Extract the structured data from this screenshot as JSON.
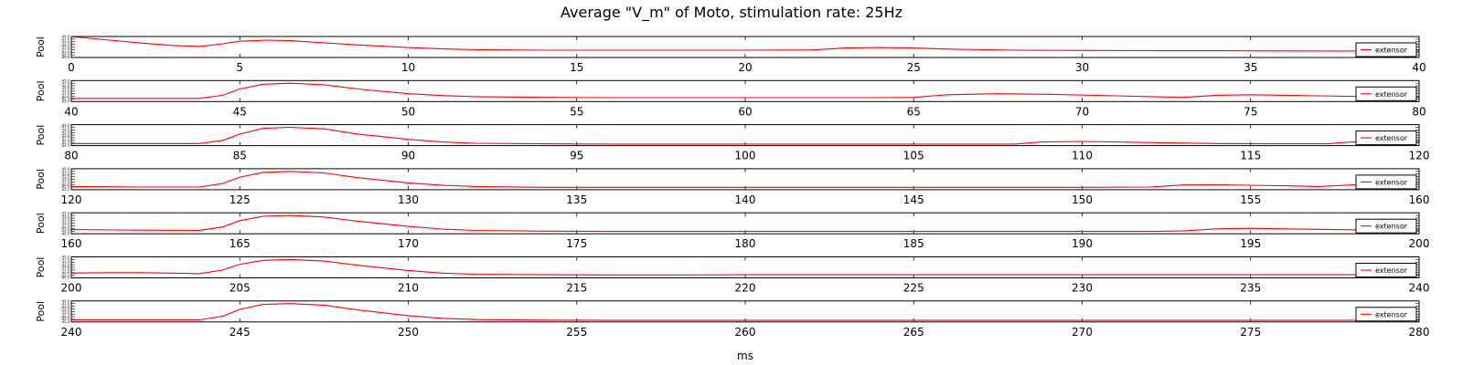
{
  "figure": {
    "title": "Average \"V_m\" of Moto, stimulation rate: 25Hz",
    "xlabel": "ms"
  },
  "chart_data": [
    {
      "type": "line",
      "ylabel": "Pool",
      "xlim": [
        0,
        40
      ],
      "ylim": [
        -65.0,
        -45.0
      ],
      "xticks": [
        "0",
        "5",
        "10",
        "15",
        "20",
        "25",
        "30",
        "35",
        "40"
      ],
      "yticks": [
        "-45.0",
        "-47.5",
        "-50.0",
        "-52.5",
        "-55.0",
        "-57.5",
        "-60.0",
        "-62.5",
        "-65.0"
      ],
      "series": [
        {
          "name": "extensor",
          "color": "#ff0000",
          "x": [
            0,
            1,
            2,
            3,
            3.8,
            4.5,
            5,
            5.8,
            6.5,
            7.5,
            8.5,
            10,
            11,
            12,
            14,
            16,
            18,
            20,
            22,
            23,
            24,
            25,
            26,
            28,
            30,
            32,
            34,
            36,
            38,
            40
          ],
          "y": [
            -45,
            -48,
            -51,
            -53.5,
            -54.5,
            -52,
            -49.5,
            -48.5,
            -49,
            -51,
            -53,
            -55.5,
            -56.8,
            -57.5,
            -58,
            -58,
            -58,
            -58,
            -57.8,
            -56,
            -55.5,
            -56,
            -57,
            -58,
            -58.3,
            -58.5,
            -58.6,
            -58.7,
            -58.8,
            -58.8
          ]
        }
      ],
      "legend": "right"
    },
    {
      "type": "line",
      "ylabel": "Pool",
      "xlim": [
        40,
        80
      ],
      "ylim": [
        -65.0,
        -45.0
      ],
      "xticks": [
        "40",
        "45",
        "50",
        "55",
        "60",
        "65",
        "70",
        "75",
        "80"
      ],
      "yticks": [
        "-45.0",
        "-47.5",
        "-50.0",
        "-52.5",
        "-55.0",
        "-57.5",
        "-60.0",
        "-62.5",
        "-65.0"
      ],
      "series": [
        {
          "name": "extensor",
          "color": "#ff0000",
          "x": [
            40,
            42,
            43.8,
            44.5,
            45,
            45.7,
            46.5,
            47.5,
            48.5,
            50,
            51,
            52,
            54,
            56,
            58,
            60,
            62,
            64,
            65,
            66,
            67.5,
            69,
            71,
            73,
            74,
            75,
            77,
            80
          ],
          "y": [
            -62,
            -62,
            -62,
            -59,
            -53,
            -48.5,
            -47.5,
            -49,
            -53,
            -57.5,
            -59.3,
            -60.3,
            -61,
            -61.3,
            -61.3,
            -61.3,
            -61.3,
            -61.3,
            -61,
            -58.5,
            -57.5,
            -58,
            -59.5,
            -61,
            -59,
            -58.5,
            -59.5,
            -61
          ]
        }
      ],
      "legend": "right"
    },
    {
      "type": "line",
      "ylabel": "Pool",
      "xlim": [
        80,
        120
      ],
      "ylim": [
        -65.0,
        -45.0
      ],
      "xticks": [
        "80",
        "85",
        "90",
        "95",
        "100",
        "105",
        "110",
        "115",
        "120"
      ],
      "yticks": [
        "-45.0",
        "-47.5",
        "-50.0",
        "-52.5",
        "-55.0",
        "-57.5",
        "-60.0",
        "-62.5",
        "-65.0"
      ],
      "series": [
        {
          "name": "extensor",
          "color": "#ff0000",
          "x": [
            80,
            82,
            83.8,
            84.5,
            85,
            85.7,
            86.5,
            87.5,
            88.5,
            90,
            91,
            92,
            94,
            96,
            98,
            100,
            102,
            104,
            106,
            108,
            108.8,
            110,
            112,
            114,
            116,
            117.3,
            118,
            120
          ],
          "y": [
            -63,
            -63,
            -63,
            -60,
            -54,
            -48.5,
            -47.5,
            -49,
            -54,
            -59,
            -61.5,
            -62.7,
            -63.3,
            -63.5,
            -63.5,
            -63.5,
            -63.5,
            -63.5,
            -63.5,
            -63.5,
            -61.5,
            -61,
            -62,
            -63,
            -63.3,
            -63.3,
            -61.5,
            -61
          ]
        }
      ],
      "legend": "right"
    },
    {
      "type": "line",
      "ylabel": "Pool",
      "xlim": [
        120,
        160
      ],
      "ylim": [
        -65.0,
        -45.0
      ],
      "xticks": [
        "120",
        "125",
        "130",
        "135",
        "140",
        "145",
        "150",
        "155",
        "160"
      ],
      "yticks": [
        "-45.0",
        "-47.5",
        "-50.0",
        "-52.5",
        "-55.0",
        "-57.5",
        "-60.0",
        "-62.5",
        "-65.0"
      ],
      "series": [
        {
          "name": "extensor",
          "color": "#ff0000",
          "x": [
            120,
            122,
            123.8,
            124.5,
            125,
            125.7,
            126.5,
            127.5,
            128.5,
            130,
            131,
            132,
            134,
            136,
            138,
            140,
            142,
            144,
            146,
            148,
            150,
            152,
            153,
            154,
            156,
            157,
            158,
            160
          ],
          "y": [
            -62,
            -62.5,
            -62.5,
            -59,
            -53,
            -48.5,
            -47.5,
            -49,
            -53.5,
            -58.5,
            -60.8,
            -62,
            -62.7,
            -62.7,
            -62.7,
            -62.7,
            -62.7,
            -62.7,
            -62.7,
            -62.7,
            -62.7,
            -62.5,
            -60.5,
            -60.3,
            -61.3,
            -62,
            -60.5,
            -60
          ]
        }
      ],
      "legend": "right"
    },
    {
      "type": "line",
      "ylabel": "Pool",
      "xlim": [
        160,
        200
      ],
      "ylim": [
        -65.0,
        -45.0
      ],
      "xticks": [
        "160",
        "165",
        "170",
        "175",
        "180",
        "185",
        "190",
        "195",
        "200"
      ],
      "yticks": [
        "-45.0",
        "-47.5",
        "-50.0",
        "-52.5",
        "-55.0",
        "-57.5",
        "-60.0",
        "-62.5",
        "-65.0"
      ],
      "series": [
        {
          "name": "extensor",
          "color": "#ff0000",
          "x": [
            160,
            162,
            163.8,
            164.5,
            165,
            165.7,
            166.5,
            167.5,
            168.5,
            170,
            171,
            172,
            174,
            176,
            178,
            180,
            182,
            184,
            186,
            188,
            190,
            192,
            193,
            194,
            195,
            196,
            198,
            200
          ],
          "y": [
            -61,
            -61.5,
            -61.7,
            -58.5,
            -52.5,
            -48.3,
            -47.5,
            -49,
            -53,
            -58,
            -60.5,
            -61.8,
            -62.5,
            -62.7,
            -62.7,
            -62.7,
            -62.7,
            -62.7,
            -62.7,
            -62.7,
            -62.7,
            -62.7,
            -62.3,
            -60.3,
            -59.8,
            -60.3,
            -61.2,
            -61.5
          ]
        }
      ],
      "legend": "right"
    },
    {
      "type": "line",
      "ylabel": "Pool",
      "xlim": [
        200,
        240
      ],
      "ylim": [
        -65.0,
        -45.0
      ],
      "xticks": [
        "200",
        "205",
        "210",
        "215",
        "220",
        "225",
        "230",
        "235",
        "240"
      ],
      "yticks": [
        "-45.0",
        "-47.5",
        "-50.0",
        "-52.5",
        "-55.0",
        "-57.5",
        "-60.0",
        "-62.5",
        "-65.0"
      ],
      "series": [
        {
          "name": "extensor",
          "color": "#ff0000",
          "x": [
            200,
            201,
            202,
            203,
            203.8,
            204.5,
            205,
            205.7,
            206.5,
            207.5,
            208.5,
            210,
            211,
            212,
            214,
            216,
            218,
            220,
            225,
            230,
            235,
            240
          ],
          "y": [
            -60.5,
            -60,
            -60,
            -60.5,
            -61,
            -57.5,
            -52,
            -48.3,
            -47.5,
            -49,
            -53,
            -58,
            -60.5,
            -61.5,
            -62,
            -62.2,
            -62.2,
            -62,
            -62,
            -62,
            -62,
            -62
          ]
        }
      ],
      "legend": "right"
    },
    {
      "type": "line",
      "ylabel": "Pool",
      "xlim": [
        240,
        280
      ],
      "ylim": [
        -65.0,
        -45.0
      ],
      "xticks": [
        "240",
        "245",
        "250",
        "255",
        "260",
        "265",
        "270",
        "275",
        "280"
      ],
      "yticks": [
        "-45.0",
        "-47.5",
        "-50.0",
        "-52.5",
        "-55.0",
        "-57.5",
        "-60.0",
        "-62.5",
        "-65.0"
      ],
      "series": [
        {
          "name": "extensor",
          "color": "#ff0000",
          "x": [
            240,
            242,
            243.8,
            244.5,
            245,
            245.7,
            246.5,
            247.5,
            248.5,
            250,
            251,
            252,
            254,
            256,
            258,
            260,
            265,
            270,
            275,
            280
          ],
          "y": [
            -63,
            -63,
            -63,
            -59.5,
            -53,
            -48.3,
            -47.5,
            -49,
            -53.5,
            -59,
            -61.5,
            -62.7,
            -63.3,
            -63.5,
            -63.5,
            -63.5,
            -63.5,
            -63.5,
            -63.5,
            -63.5
          ]
        }
      ],
      "legend": "right"
    }
  ]
}
